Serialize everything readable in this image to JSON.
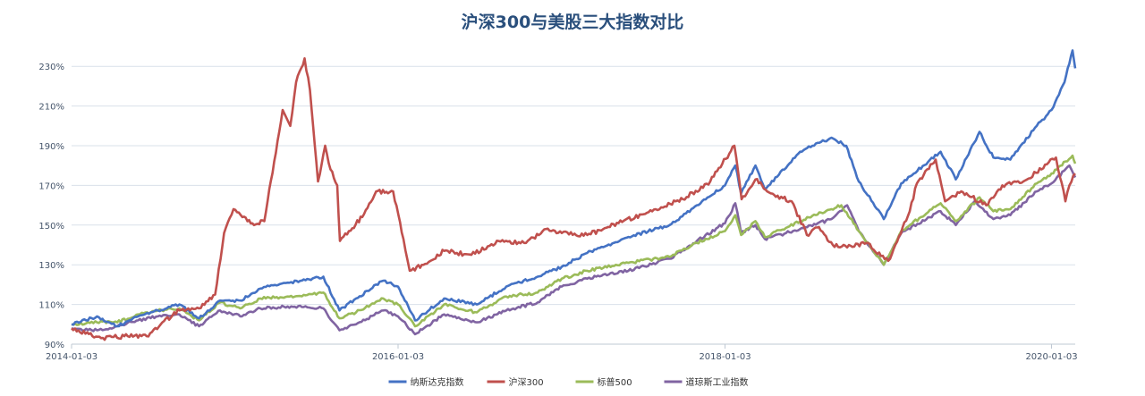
{
  "chart_data": {
    "type": "line",
    "title": "沪深300与美股三大指数对比",
    "xlabel": "",
    "ylabel": "",
    "y_unit": "%",
    "ylim": [
      90,
      240
    ],
    "y_ticks": [
      "90%",
      "110%",
      "130%",
      "150%",
      "170%",
      "190%",
      "210%",
      "230%"
    ],
    "x_range": [
      "2014-01-03",
      "2020-02-25"
    ],
    "x_ticks": [
      "2014-01-03",
      "2016-01-03",
      "2018-01-03",
      "2020-01-03"
    ],
    "grid": "horizontal",
    "legend_position": "bottom-center",
    "series": [
      {
        "name": "纳斯达克指数",
        "color": "#4472c4",
        "points": [
          [
            "2014-01-03",
            100
          ],
          [
            "2014-03-01",
            104
          ],
          [
            "2014-04-15",
            99
          ],
          [
            "2014-06-01",
            104
          ],
          [
            "2014-07-15",
            107
          ],
          [
            "2014-09-01",
            110
          ],
          [
            "2014-10-15",
            103
          ],
          [
            "2014-12-01",
            112
          ],
          [
            "2015-01-15",
            112
          ],
          [
            "2015-03-01",
            118
          ],
          [
            "2015-05-01",
            121
          ],
          [
            "2015-07-20",
            124
          ],
          [
            "2015-08-25",
            107
          ],
          [
            "2015-10-01",
            113
          ],
          [
            "2015-12-01",
            122
          ],
          [
            "2016-01-03",
            119
          ],
          [
            "2016-02-10",
            102
          ],
          [
            "2016-04-15",
            113
          ],
          [
            "2016-06-27",
            110
          ],
          [
            "2016-09-01",
            119
          ],
          [
            "2016-11-10",
            124
          ],
          [
            "2017-01-03",
            129
          ],
          [
            "2017-03-01",
            136
          ],
          [
            "2017-06-01",
            144
          ],
          [
            "2017-09-01",
            150
          ],
          [
            "2017-11-01",
            160
          ],
          [
            "2018-01-03",
            170
          ],
          [
            "2018-01-26",
            180
          ],
          [
            "2018-02-08",
            166
          ],
          [
            "2018-03-12",
            180
          ],
          [
            "2018-04-02",
            168
          ],
          [
            "2018-06-20",
            187
          ],
          [
            "2018-08-29",
            194
          ],
          [
            "2018-10-01",
            190
          ],
          [
            "2018-10-29",
            172
          ],
          [
            "2018-12-24",
            153
          ],
          [
            "2019-02-01",
            171
          ],
          [
            "2019-04-30",
            187
          ],
          [
            "2019-06-03",
            173
          ],
          [
            "2019-07-26",
            197
          ],
          [
            "2019-08-26",
            184
          ],
          [
            "2019-10-03",
            183
          ],
          [
            "2019-12-01",
            200
          ],
          [
            "2020-01-03",
            208
          ],
          [
            "2020-02-01",
            222
          ],
          [
            "2020-02-19",
            238
          ],
          [
            "2020-02-25",
            229
          ]
        ]
      },
      {
        "name": "沪深300",
        "color": "#c0504d",
        "points": [
          [
            "2014-01-03",
            98
          ],
          [
            "2014-03-10",
            93
          ],
          [
            "2014-05-01",
            94
          ],
          [
            "2014-06-20",
            94
          ],
          [
            "2014-07-25",
            101
          ],
          [
            "2014-09-01",
            107
          ],
          [
            "2014-10-15",
            108
          ],
          [
            "2014-11-20",
            115
          ],
          [
            "2014-12-10",
            146
          ],
          [
            "2014-12-31",
            158
          ],
          [
            "2015-01-20",
            154
          ],
          [
            "2015-02-15",
            150
          ],
          [
            "2015-03-10",
            152
          ],
          [
            "2015-04-01",
            182
          ],
          [
            "2015-04-20",
            208
          ],
          [
            "2015-05-07",
            200
          ],
          [
            "2015-05-20",
            222
          ],
          [
            "2015-06-08",
            234
          ],
          [
            "2015-06-20",
            218
          ],
          [
            "2015-07-08",
            172
          ],
          [
            "2015-07-24",
            190
          ],
          [
            "2015-08-05",
            178
          ],
          [
            "2015-08-20",
            170
          ],
          [
            "2015-08-26",
            142
          ],
          [
            "2015-09-15",
            147
          ],
          [
            "2015-10-15",
            154
          ],
          [
            "2015-11-15",
            167
          ],
          [
            "2015-12-23",
            167
          ],
          [
            "2016-01-15",
            143
          ],
          [
            "2016-01-29",
            127
          ],
          [
            "2016-02-29",
            130
          ],
          [
            "2016-04-15",
            137
          ],
          [
            "2016-06-15",
            135
          ],
          [
            "2016-08-15",
            142
          ],
          [
            "2016-10-15",
            141
          ],
          [
            "2016-11-29",
            148
          ],
          [
            "2017-01-03",
            146
          ],
          [
            "2017-03-01",
            145
          ],
          [
            "2017-05-10",
            151
          ],
          [
            "2017-08-01",
            158
          ],
          [
            "2017-10-01",
            163
          ],
          [
            "2017-12-01",
            172
          ],
          [
            "2018-01-24",
            190
          ],
          [
            "2018-02-09",
            163
          ],
          [
            "2018-03-12",
            173
          ],
          [
            "2018-04-15",
            166
          ],
          [
            "2018-06-01",
            162
          ],
          [
            "2018-07-05",
            145
          ],
          [
            "2018-08-01",
            149
          ],
          [
            "2018-09-01",
            140
          ],
          [
            "2018-10-15",
            139
          ],
          [
            "2018-11-15",
            141
          ],
          [
            "2019-01-03",
            132
          ],
          [
            "2019-02-20",
            157
          ],
          [
            "2019-03-08",
            171
          ],
          [
            "2019-04-19",
            183
          ],
          [
            "2019-05-10",
            162
          ],
          [
            "2019-06-15",
            167
          ],
          [
            "2019-08-10",
            160
          ],
          [
            "2019-09-15",
            170
          ],
          [
            "2019-11-01",
            172
          ],
          [
            "2020-01-13",
            184
          ],
          [
            "2020-02-03",
            162
          ],
          [
            "2020-02-12",
            170
          ],
          [
            "2020-02-25",
            176
          ]
        ]
      },
      {
        "name": "标普500",
        "color": "#9bbb59",
        "points": [
          [
            "2014-01-03",
            100
          ],
          [
            "2014-03-01",
            101
          ],
          [
            "2014-04-15",
            101
          ],
          [
            "2014-06-01",
            105
          ],
          [
            "2014-07-15",
            107
          ],
          [
            "2014-09-01",
            108
          ],
          [
            "2014-10-15",
            102
          ],
          [
            "2014-12-01",
            111
          ],
          [
            "2015-01-15",
            108
          ],
          [
            "2015-03-01",
            113
          ],
          [
            "2015-05-01",
            114
          ],
          [
            "2015-07-20",
            116
          ],
          [
            "2015-08-25",
            103
          ],
          [
            "2015-10-01",
            106
          ],
          [
            "2015-12-01",
            113
          ],
          [
            "2016-01-03",
            110
          ],
          [
            "2016-02-10",
            99
          ],
          [
            "2016-04-15",
            110
          ],
          [
            "2016-06-27",
            106
          ],
          [
            "2016-09-01",
            114
          ],
          [
            "2016-11-10",
            116
          ],
          [
            "2017-01-03",
            123
          ],
          [
            "2017-03-01",
            127
          ],
          [
            "2017-06-01",
            131
          ],
          [
            "2017-09-01",
            134
          ],
          [
            "2017-11-01",
            141
          ],
          [
            "2018-01-03",
            147
          ],
          [
            "2018-01-26",
            155
          ],
          [
            "2018-02-08",
            145
          ],
          [
            "2018-03-12",
            152
          ],
          [
            "2018-04-02",
            144
          ],
          [
            "2018-06-20",
            152
          ],
          [
            "2018-08-29",
            158
          ],
          [
            "2018-09-20",
            160
          ],
          [
            "2018-10-29",
            147
          ],
          [
            "2018-12-24",
            130
          ],
          [
            "2019-02-01",
            147
          ],
          [
            "2019-04-30",
            161
          ],
          [
            "2019-06-03",
            152
          ],
          [
            "2019-07-26",
            164
          ],
          [
            "2019-08-26",
            157
          ],
          [
            "2019-10-03",
            158
          ],
          [
            "2019-12-01",
            171
          ],
          [
            "2020-01-03",
            176
          ],
          [
            "2020-02-19",
            185
          ],
          [
            "2020-02-25",
            181
          ]
        ]
      },
      {
        "name": "道琼斯工业指数",
        "color": "#8064a2",
        "points": [
          [
            "2014-01-03",
            98
          ],
          [
            "2014-03-01",
            97
          ],
          [
            "2014-04-15",
            99
          ],
          [
            "2014-06-01",
            102
          ],
          [
            "2014-07-15",
            104
          ],
          [
            "2014-09-01",
            105
          ],
          [
            "2014-10-15",
            99
          ],
          [
            "2014-12-01",
            107
          ],
          [
            "2015-01-15",
            104
          ],
          [
            "2015-03-01",
            108
          ],
          [
            "2015-05-01",
            109
          ],
          [
            "2015-07-20",
            108
          ],
          [
            "2015-08-25",
            97
          ],
          [
            "2015-10-01",
            100
          ],
          [
            "2015-12-01",
            107
          ],
          [
            "2016-01-03",
            104
          ],
          [
            "2016-02-10",
            95
          ],
          [
            "2016-04-15",
            105
          ],
          [
            "2016-06-27",
            101
          ],
          [
            "2016-09-01",
            107
          ],
          [
            "2016-11-10",
            111
          ],
          [
            "2017-01-03",
            119
          ],
          [
            "2017-03-01",
            123
          ],
          [
            "2017-06-01",
            127
          ],
          [
            "2017-09-01",
            133
          ],
          [
            "2017-11-01",
            142
          ],
          [
            "2018-01-03",
            151
          ],
          [
            "2018-01-26",
            161
          ],
          [
            "2018-02-08",
            146
          ],
          [
            "2018-03-12",
            150
          ],
          [
            "2018-04-02",
            143
          ],
          [
            "2018-06-20",
            148
          ],
          [
            "2018-08-29",
            153
          ],
          [
            "2018-10-03",
            160
          ],
          [
            "2018-10-29",
            147
          ],
          [
            "2018-12-24",
            130
          ],
          [
            "2019-02-01",
            146
          ],
          [
            "2019-04-30",
            157
          ],
          [
            "2019-06-03",
            150
          ],
          [
            "2019-07-15",
            162
          ],
          [
            "2019-08-26",
            153
          ],
          [
            "2019-10-03",
            155
          ],
          [
            "2019-12-01",
            167
          ],
          [
            "2020-01-03",
            171
          ],
          [
            "2020-02-12",
            180
          ],
          [
            "2020-02-25",
            174
          ]
        ]
      }
    ]
  }
}
